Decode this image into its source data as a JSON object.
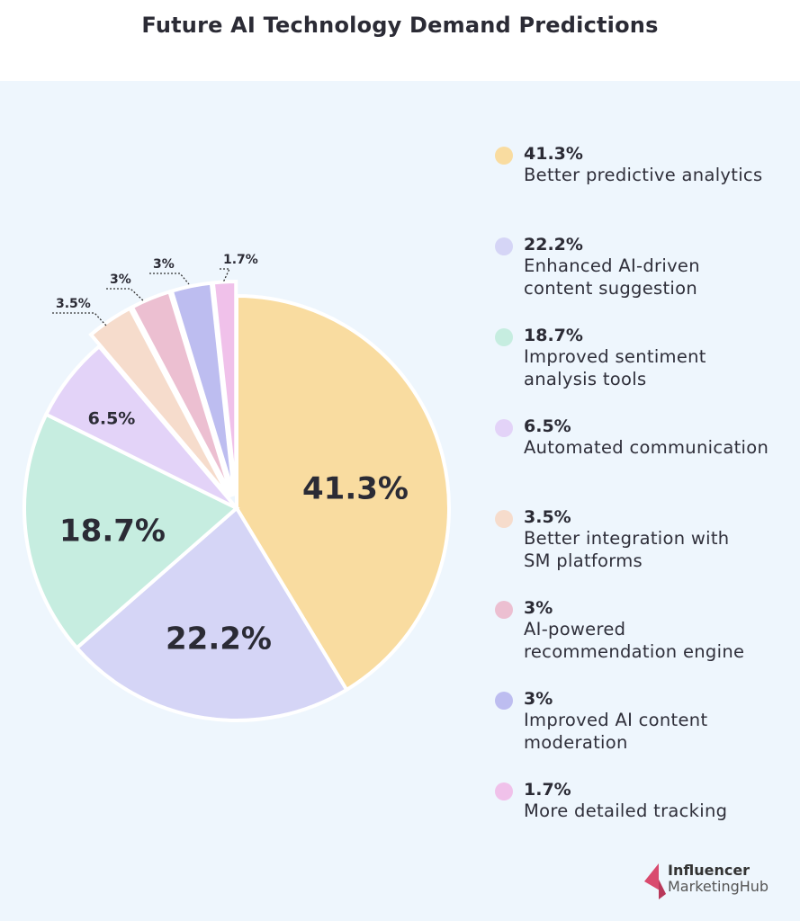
{
  "chart_data": {
    "type": "pie",
    "title": "Future AI Technology Demand Predictions",
    "slices": [
      {
        "label": "Better predictive analytics",
        "value": 41.3,
        "display": "41.3%",
        "color": "#f9dca0"
      },
      {
        "label": "Enhanced AI-driven content suggestion",
        "value": 22.2,
        "display": "22.2%",
        "color": "#d5d5f6"
      },
      {
        "label": "Improved sentiment analysis tools",
        "value": 18.7,
        "display": "18.7%",
        "color": "#c6ede0"
      },
      {
        "label": "Automated communication",
        "value": 6.5,
        "display": "6.5%",
        "color": "#e3d3f8"
      },
      {
        "label": "Better integration with SM platforms",
        "value": 3.5,
        "display": "3.5%",
        "color": "#f6dccc"
      },
      {
        "label": "AI-powered recommendation engine",
        "value": 3,
        "display": "3%",
        "color": "#ecbfd1"
      },
      {
        "label": "Improved AI content moderation",
        "value": 3,
        "display": "3%",
        "color": "#bdbdf0"
      },
      {
        "label": "More detailed tracking",
        "value": 1.7,
        "display": "1.7%",
        "color": "#f0c1ea"
      }
    ],
    "legend_placement": "right",
    "start_angle": "top, clockwise"
  },
  "legend_lines": [
    [
      "Better predictive analytics"
    ],
    [
      "Enhanced AI-driven",
      "content suggestion"
    ],
    [
      "Improved sentiment",
      "analysis tools"
    ],
    [
      "Automated communication"
    ],
    [
      "Better integration with",
      "SM platforms"
    ],
    [
      "AI-powered",
      "recommendation engine"
    ],
    [
      "Improved AI content",
      "moderation"
    ],
    [
      "More detailed tracking"
    ]
  ],
  "logo": {
    "line1": "Influencer",
    "line2": "MarketingHub",
    "color": "#d94a6e"
  }
}
